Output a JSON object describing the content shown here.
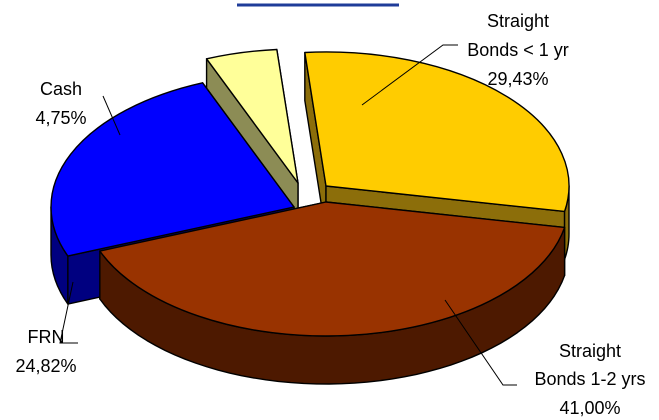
{
  "chart_data": {
    "type": "pie",
    "style": "3d-exploded",
    "title": "",
    "slices": [
      {
        "name_lines": [
          "Straight",
          "Bonds < 1 yr"
        ],
        "value": 29.43,
        "value_label": "29,43%",
        "top_color": "#FFCC00",
        "side_color": "#8C6E0A"
      },
      {
        "name_lines": [
          "Straight",
          "Bonds 1-2 yrs"
        ],
        "value": 41.0,
        "value_label": "41,00%",
        "top_color": "#993300",
        "side_color": "#4D1900"
      },
      {
        "name_lines": [
          "FRN"
        ],
        "value": 24.82,
        "value_label": "24,82%",
        "top_color": "#0000FF",
        "side_color": "#000080"
      },
      {
        "name_lines": [
          "Cash"
        ],
        "value": 4.75,
        "value_label": "4,75%",
        "top_color": "#FFFF99",
        "side_color": "#8C8C55"
      }
    ],
    "legend": "none",
    "title_underline_color": "#1F3C99"
  }
}
